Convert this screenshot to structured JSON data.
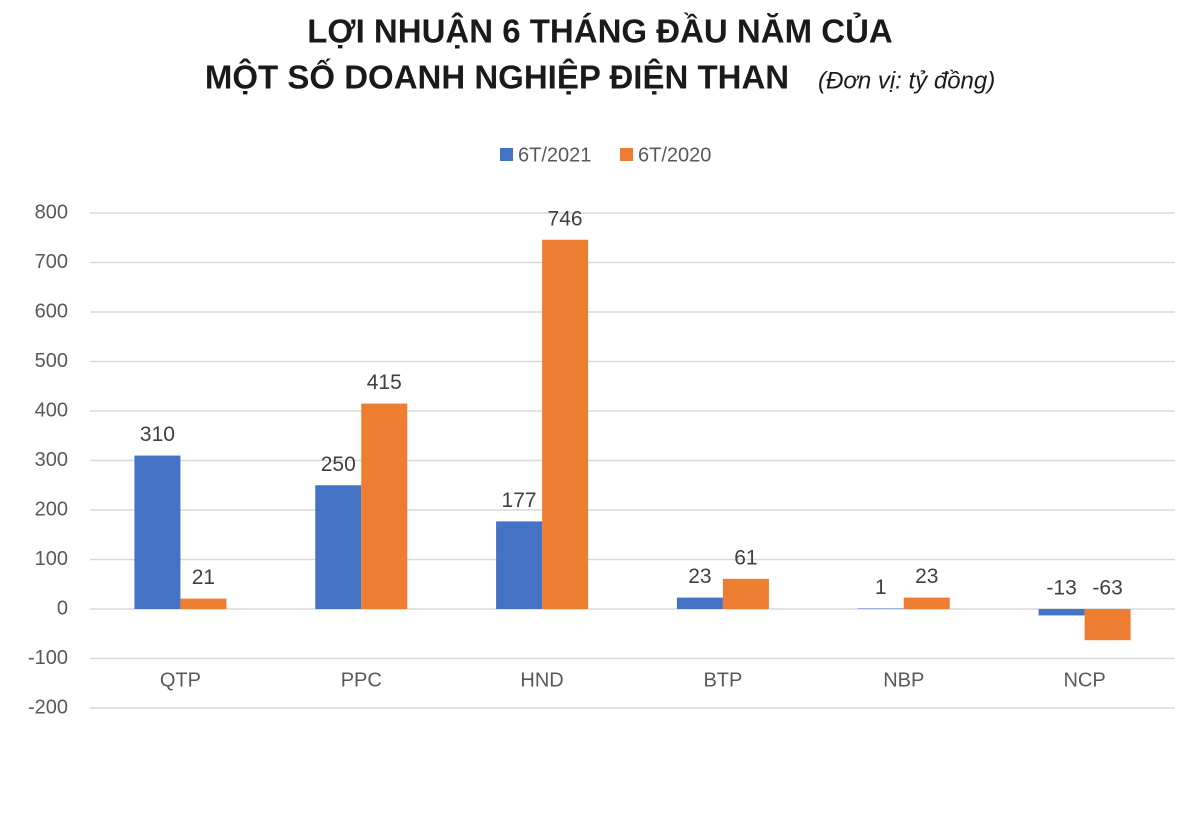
{
  "chart_data": {
    "type": "bar",
    "title": [
      "LỢI NHUẬN 6 THÁNG ĐẦU NĂM CỦA",
      "MỘT SỐ DOANH NGHIỆP ĐIỆN THAN"
    ],
    "unit": "(Đơn vị: tỷ đồng)",
    "categories": [
      "QTP",
      "PPC",
      "HND",
      "BTP",
      "NBP",
      "NCP"
    ],
    "series": [
      {
        "name": "6T/2021",
        "color": "#4472c4",
        "values": [
          310,
          250,
          177,
          23,
          1,
          -13
        ]
      },
      {
        "name": "6T/2020",
        "color": "#ed7d31",
        "values": [
          21,
          415,
          746,
          61,
          23,
          -63
        ]
      }
    ],
    "ylim": [
      -200,
      800
    ],
    "yticks": [
      -200,
      -100,
      0,
      100,
      200,
      300,
      400,
      500,
      600,
      700,
      800
    ],
    "grid": true,
    "legend": "top"
  }
}
